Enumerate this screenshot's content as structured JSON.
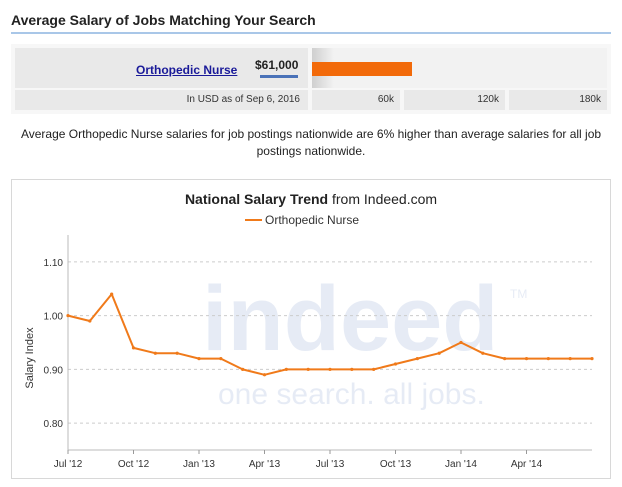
{
  "header": {
    "title": "Average Salary of Jobs Matching Your Search"
  },
  "salary_summary": {
    "job_title": "Orthopedic Nurse",
    "salary": "$61,000",
    "salary_value": 61000,
    "scale_max": 180000,
    "bar_color": "#f26a0a",
    "footnote": "In USD as of Sep 6, 2016",
    "scale_labels": [
      "60k",
      "120k",
      "180k"
    ]
  },
  "comparison_text": "Average Orthopedic Nurse salaries for job postings nationwide are 6% higher than average salaries for all job postings nationwide.",
  "watermark": {
    "logo_text": "indeed",
    "tagline": "one search. all jobs.",
    "trademark": "TM"
  },
  "chart_data": {
    "type": "line",
    "title_bold": "National Salary Trend",
    "title_rest": " from Indeed.com",
    "ylabel": "Salary Index",
    "xlabel": "",
    "ylim": [
      0.75,
      1.15
    ],
    "yticks": [
      0.8,
      0.9,
      1.0,
      1.1
    ],
    "ytick_labels": [
      "0.80",
      "0.90",
      "1.00",
      "1.10"
    ],
    "x_axis_range": [
      0,
      24
    ],
    "xticks": [
      0,
      3,
      6,
      9,
      12,
      15,
      18,
      21
    ],
    "xtick_labels": [
      "Jul '12",
      "Oct '12",
      "Jan '13",
      "Apr '13",
      "Jul '13",
      "Oct '13",
      "Jan '14",
      "Apr '14"
    ],
    "grid": true,
    "legend_position": "top-center",
    "series": [
      {
        "name": "Orthopedic Nurse",
        "color": "#f07a1a",
        "x": [
          0,
          1,
          2,
          3,
          4,
          5,
          6,
          7,
          8,
          9,
          10,
          11,
          12,
          13,
          14,
          15,
          16,
          17,
          18,
          19,
          20,
          21,
          22,
          23,
          24
        ],
        "values": [
          1.0,
          0.99,
          1.04,
          0.94,
          0.93,
          0.93,
          0.92,
          0.92,
          0.9,
          0.89,
          0.9,
          0.9,
          0.9,
          0.9,
          0.9,
          0.91,
          0.92,
          0.93,
          0.95,
          0.93,
          0.92,
          0.92,
          0.92,
          0.92,
          0.92
        ]
      }
    ]
  }
}
